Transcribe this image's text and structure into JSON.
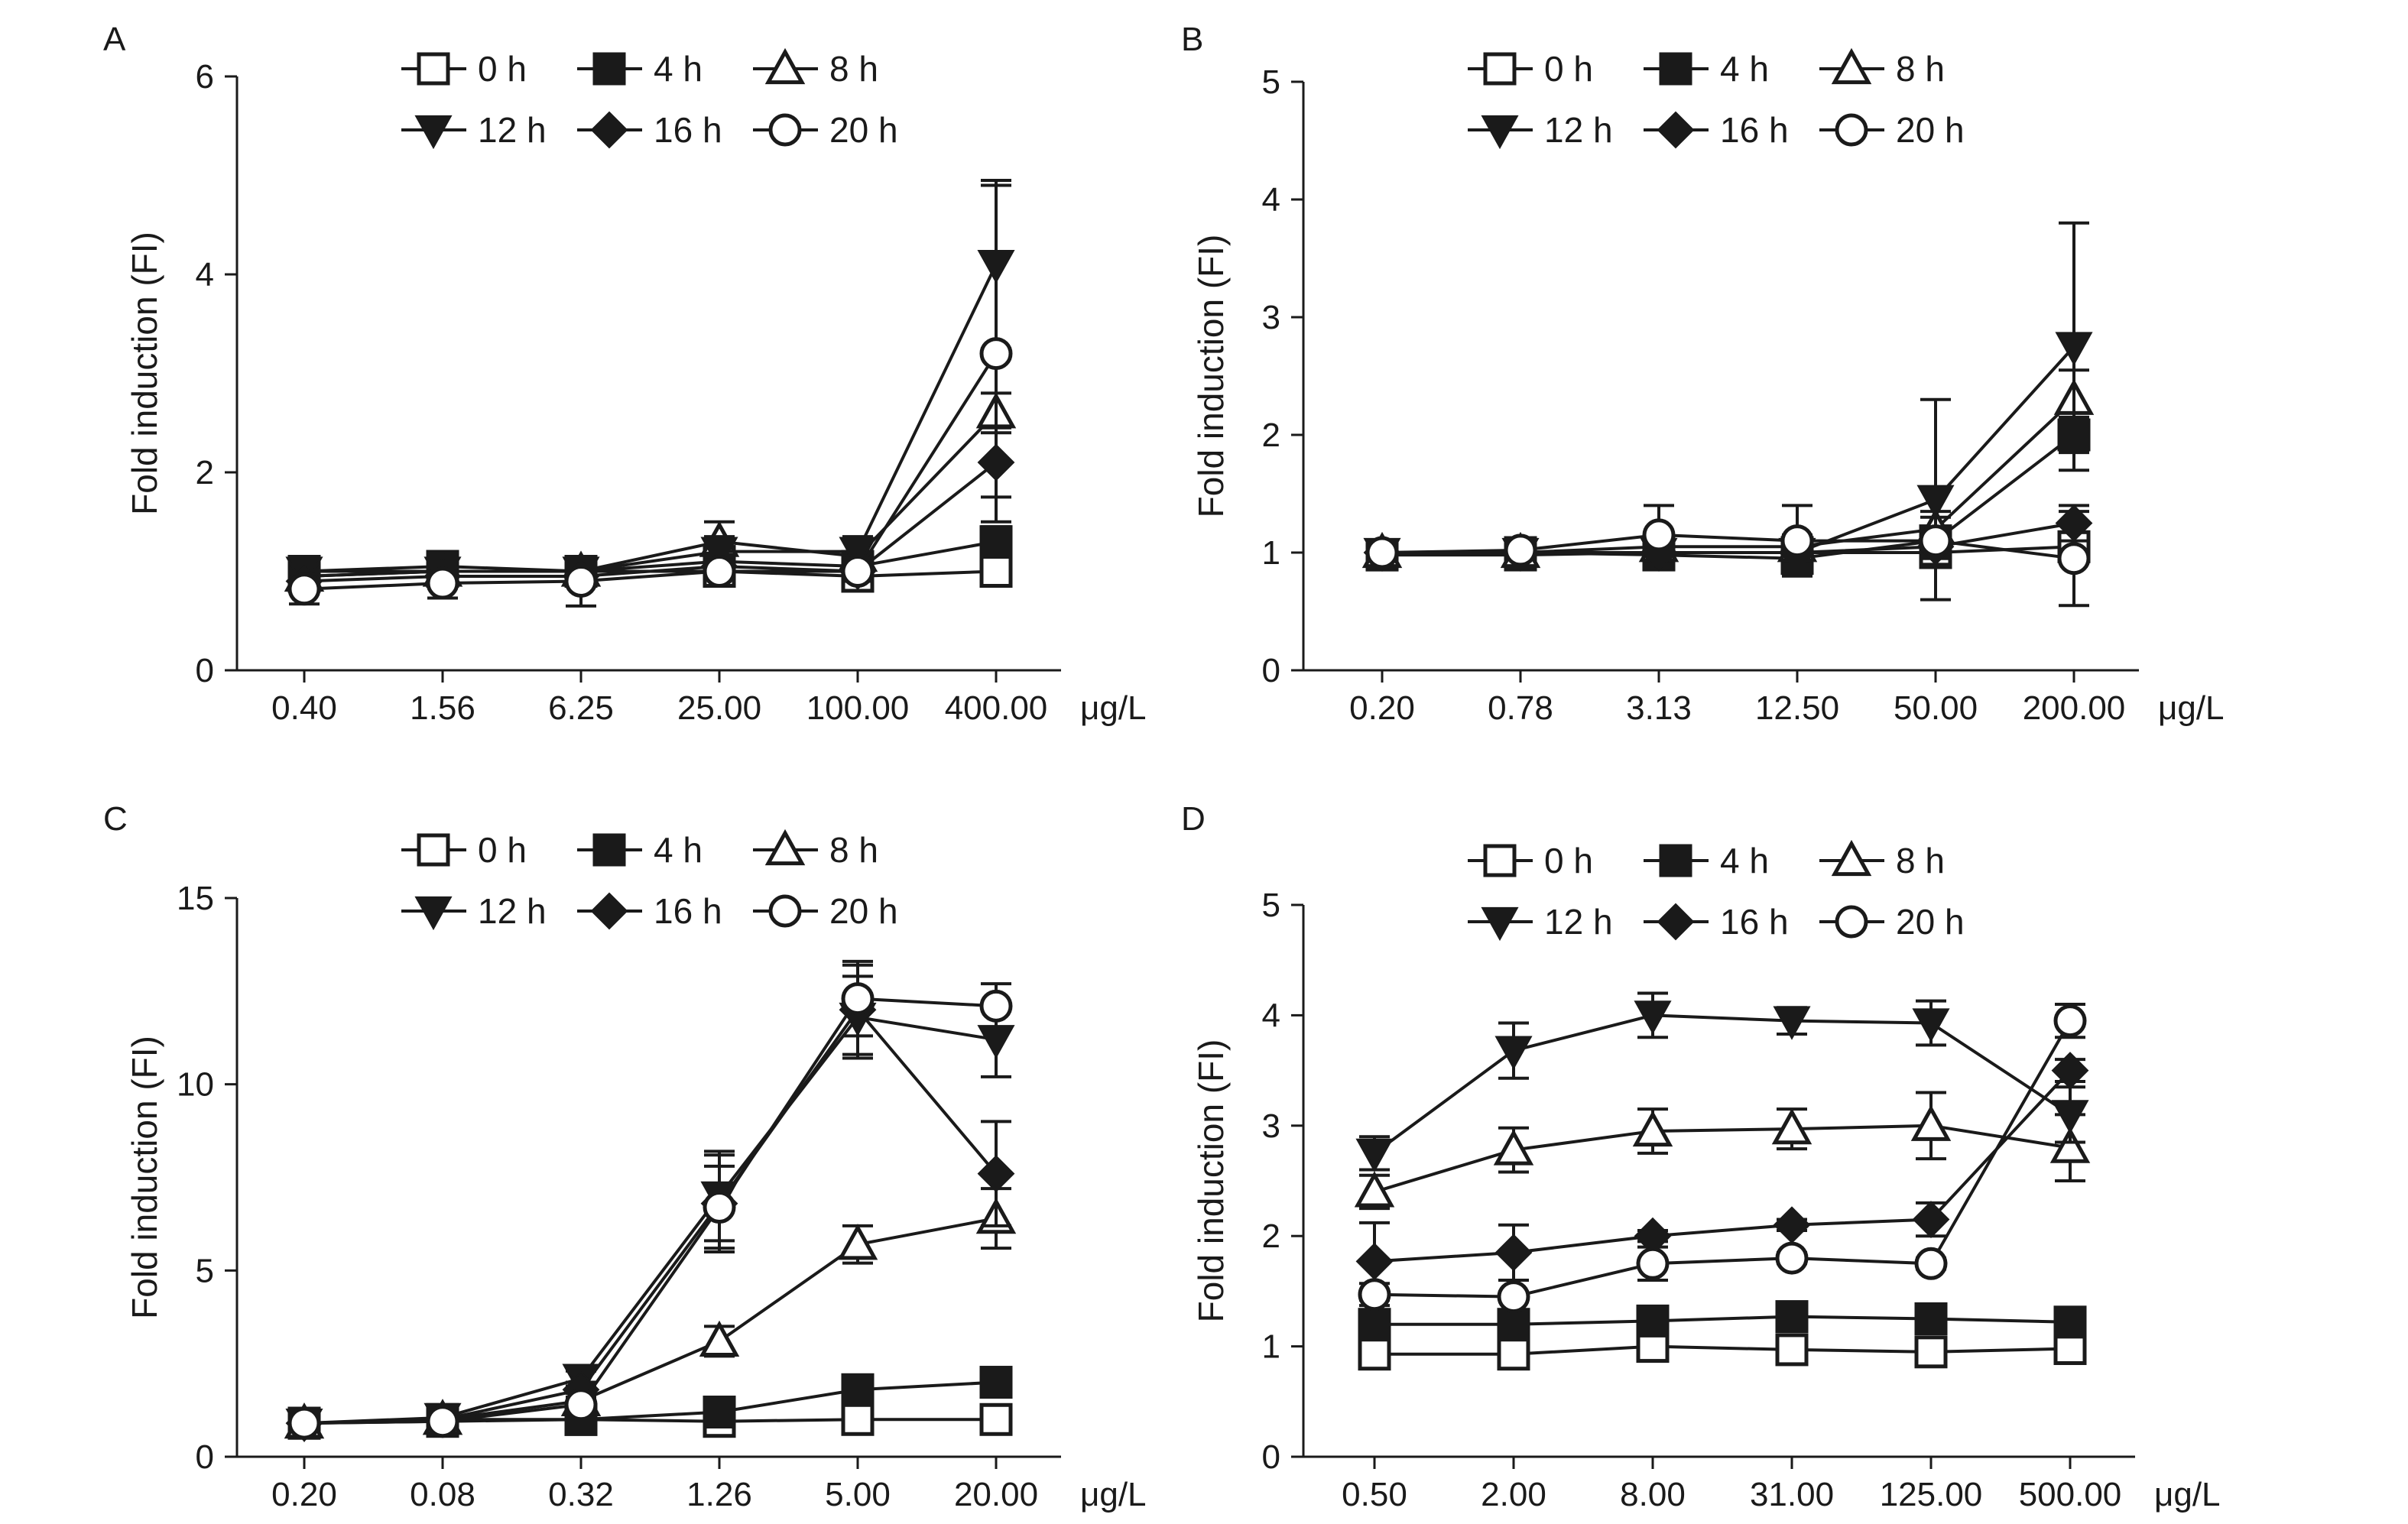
{
  "figure": {
    "unit": "μg/L",
    "ylabel": "Fold induction (FI)"
  },
  "chart_data": [
    {
      "panel": "A",
      "type": "line",
      "categories": [
        "0.40",
        "1.56",
        "6.25",
        "25.00",
        "100.00",
        "400.00"
      ],
      "ylim": [
        0,
        6
      ],
      "yticks": [
        0,
        2,
        4,
        6
      ],
      "xlabel": "μg/L",
      "ylabel": "Fold induction (FI)",
      "grid": false,
      "legend": "top",
      "series": [
        {
          "name": "0 h",
          "marker": "square-open",
          "values": [
            0.95,
            1.0,
            1.0,
            1.0,
            0.95,
            1.0
          ],
          "errors": [
            0.05,
            0.05,
            0.05,
            0.05,
            0.05,
            0.05
          ]
        },
        {
          "name": "4 h",
          "marker": "square-filled",
          "values": [
            1.0,
            1.05,
            1.0,
            1.1,
            1.05,
            1.3
          ],
          "errors": [
            0.08,
            0.08,
            0.08,
            0.1,
            0.1,
            0.15
          ]
        },
        {
          "name": "8 h",
          "marker": "triangle-open",
          "values": [
            0.95,
            1.0,
            1.0,
            1.3,
            1.15,
            2.6
          ],
          "errors": [
            0.08,
            0.08,
            0.1,
            0.2,
            0.15,
            0.2
          ]
        },
        {
          "name": "12 h",
          "marker": "triangle-down",
          "values": [
            1.0,
            1.0,
            1.0,
            1.2,
            1.2,
            4.1
          ],
          "errors": [
            0.08,
            0.08,
            0.1,
            0.15,
            0.15,
            0.85
          ]
        },
        {
          "name": "16 h",
          "marker": "diamond",
          "values": [
            0.9,
            0.95,
            0.95,
            1.05,
            1.0,
            2.1
          ],
          "errors": [
            0.08,
            0.08,
            0.1,
            0.1,
            0.1,
            0.35
          ]
        },
        {
          "name": "20 h",
          "marker": "circle-open",
          "values": [
            0.82,
            0.88,
            0.9,
            1.0,
            1.0,
            3.2
          ],
          "errors": [
            0.15,
            0.15,
            0.25,
            0.15,
            0.1,
            1.7
          ]
        }
      ]
    },
    {
      "panel": "B",
      "type": "line",
      "categories": [
        "0.20",
        "0.78",
        "3.13",
        "12.50",
        "50.00",
        "200.00"
      ],
      "ylim": [
        0,
        5
      ],
      "yticks": [
        0,
        1,
        2,
        3,
        4,
        5
      ],
      "xlabel": "μg/L",
      "ylabel": "Fold induction (FI)",
      "grid": false,
      "legend": "top",
      "series": [
        {
          "name": "0 h",
          "marker": "square-open",
          "values": [
            0.98,
            0.98,
            1.0,
            1.0,
            1.0,
            1.05
          ],
          "errors": [
            0.05,
            0.05,
            0.05,
            0.05,
            0.05,
            0.05
          ]
        },
        {
          "name": "4 h",
          "marker": "square-filled",
          "values": [
            0.98,
            1.0,
            0.98,
            0.95,
            1.1,
            2.0
          ],
          "errors": [
            0.05,
            0.05,
            0.1,
            0.1,
            0.1,
            0.15
          ]
        },
        {
          "name": "8 h",
          "marker": "triangle-open",
          "values": [
            1.0,
            1.0,
            1.05,
            1.05,
            1.2,
            2.3
          ],
          "errors": [
            0.05,
            0.05,
            0.1,
            0.1,
            0.15,
            0.25
          ]
        },
        {
          "name": "12 h",
          "marker": "triangle-down",
          "values": [
            1.0,
            1.0,
            1.0,
            1.0,
            1.45,
            2.75
          ],
          "errors": [
            0.05,
            0.05,
            0.1,
            0.1,
            0.85,
            1.05
          ]
        },
        {
          "name": "16 h",
          "marker": "diamond",
          "values": [
            1.0,
            1.0,
            1.0,
            1.0,
            1.05,
            1.25
          ],
          "errors": [
            0.05,
            0.05,
            0.1,
            0.1,
            0.1,
            0.15
          ]
        },
        {
          "name": "20 h",
          "marker": "circle-open",
          "values": [
            1.0,
            1.02,
            1.15,
            1.1,
            1.1,
            0.95
          ],
          "errors": [
            0.05,
            0.05,
            0.25,
            0.3,
            0.2,
            0.4
          ]
        }
      ]
    },
    {
      "panel": "C",
      "type": "line",
      "categories": [
        "0.20",
        "0.08",
        "0.32",
        "1.26",
        "5.00",
        "20.00"
      ],
      "ylim": [
        0,
        15
      ],
      "yticks": [
        0,
        5,
        10,
        15
      ],
      "xlabel": "μg/L",
      "ylabel": "Fold induction (FI)",
      "grid": false,
      "legend": "top",
      "series": [
        {
          "name": "0 h",
          "marker": "square-open",
          "values": [
            0.9,
            0.95,
            1.0,
            0.95,
            1.0,
            1.0
          ],
          "errors": [
            0.05,
            0.05,
            0.05,
            0.05,
            0.05,
            0.1
          ]
        },
        {
          "name": "4 h",
          "marker": "square-filled",
          "values": [
            0.9,
            1.0,
            1.0,
            1.2,
            1.8,
            2.0
          ],
          "errors": [
            0.05,
            0.05,
            0.1,
            0.1,
            0.2,
            0.2
          ]
        },
        {
          "name": "8 h",
          "marker": "triangle-open",
          "values": [
            0.9,
            1.0,
            1.5,
            3.1,
            5.7,
            6.4
          ],
          "errors": [
            0.05,
            0.05,
            0.2,
            0.4,
            0.5,
            0.8
          ]
        },
        {
          "name": "12 h",
          "marker": "triangle-down",
          "values": [
            0.9,
            1.05,
            2.1,
            7.0,
            11.8,
            11.2
          ],
          "errors": [
            0.05,
            0.1,
            0.2,
            1.2,
            1.1,
            1.0
          ]
        },
        {
          "name": "16 h",
          "marker": "diamond",
          "values": [
            0.9,
            1.0,
            1.8,
            6.8,
            12.0,
            7.6
          ],
          "errors": [
            0.05,
            0.1,
            0.2,
            1.3,
            1.2,
            1.4
          ]
        },
        {
          "name": "20 h",
          "marker": "circle-open",
          "values": [
            0.9,
            0.95,
            1.4,
            6.7,
            12.3,
            12.1
          ],
          "errors": [
            0.05,
            0.1,
            0.2,
            1.1,
            1.0,
            0.6
          ]
        }
      ]
    },
    {
      "panel": "D",
      "type": "line",
      "categories": [
        "0.50",
        "2.00",
        "8.00",
        "31.00",
        "125.00",
        "500.00"
      ],
      "ylim": [
        0,
        5
      ],
      "yticks": [
        0,
        1,
        2,
        3,
        4,
        5
      ],
      "xlabel": "μg/L",
      "ylabel": "Fold induction (FI)",
      "grid": false,
      "legend": "top",
      "series": [
        {
          "name": "0 h",
          "marker": "square-open",
          "values": [
            0.93,
            0.93,
            1.0,
            0.97,
            0.95,
            0.98
          ],
          "errors": [
            0.05,
            0.05,
            0.05,
            0.05,
            0.05,
            0.05
          ]
        },
        {
          "name": "4 h",
          "marker": "square-filled",
          "values": [
            1.2,
            1.2,
            1.23,
            1.27,
            1.25,
            1.22
          ],
          "errors": [
            0.05,
            0.05,
            0.05,
            0.05,
            0.05,
            0.05
          ]
        },
        {
          "name": "8 h",
          "marker": "triangle-open",
          "values": [
            2.4,
            2.78,
            2.95,
            2.97,
            3.0,
            2.8
          ],
          "errors": [
            0.15,
            0.2,
            0.2,
            0.18,
            0.3,
            0.3
          ]
        },
        {
          "name": "12 h",
          "marker": "triangle-down",
          "values": [
            2.75,
            3.68,
            4.0,
            3.95,
            3.93,
            3.1
          ],
          "errors": [
            0.15,
            0.25,
            0.2,
            0.12,
            0.2,
            0.25
          ]
        },
        {
          "name": "16 h",
          "marker": "diamond",
          "values": [
            1.77,
            1.85,
            2.0,
            2.1,
            2.15,
            3.5
          ],
          "errors": [
            0.35,
            0.25,
            0.05,
            0.05,
            0.15,
            0.1
          ]
        },
        {
          "name": "20 h",
          "marker": "circle-open",
          "values": [
            1.47,
            1.45,
            1.75,
            1.8,
            1.75,
            3.95
          ],
          "errors": [
            0.1,
            0.15,
            0.15,
            0.05,
            0.05,
            0.15
          ]
        }
      ]
    }
  ]
}
